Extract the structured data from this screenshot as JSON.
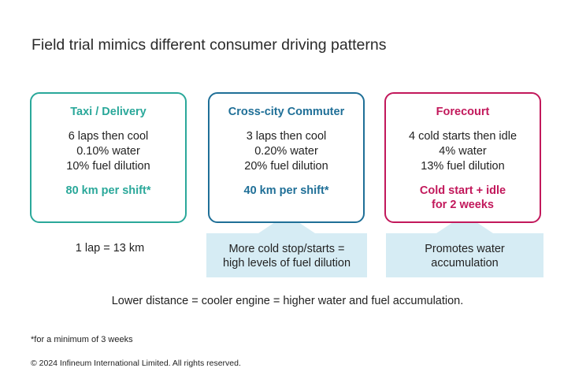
{
  "title": "Field trial mimics different consumer driving patterns",
  "colors": {
    "taxi": "#2aa89a",
    "commuter": "#1f6f97",
    "forecourt": "#c2185b",
    "callout_bg": "#d6ecf4"
  },
  "cards": [
    {
      "heading": "Taxi / Delivery",
      "lines": [
        "6 laps then cool",
        "0.10% water",
        "10% fuel dilution"
      ],
      "highlight": [
        "80 km per shift*"
      ]
    },
    {
      "heading": "Cross-city Commuter",
      "lines": [
        "3 laps then cool",
        "0.20% water",
        "20% fuel dilution"
      ],
      "highlight": [
        "40 km per shift*"
      ]
    },
    {
      "heading": "Forecourt",
      "lines": [
        "4 cold starts then idle",
        "4% water",
        "13% fuel dilution"
      ],
      "highlight": [
        "Cold start + idle",
        "for 2 weeks"
      ]
    }
  ],
  "lap_note": "1 lap = 13 km",
  "callouts": [
    [
      "More cold stop/starts =",
      "high levels of fuel dilution"
    ],
    [
      "Promotes water",
      "accumulation"
    ]
  ],
  "summary": "Lower distance = cooler engine = higher water and fuel accumulation.",
  "footnote": "*for a minimum of 3 weeks",
  "copyright": "© 2024 Infineum International Limited. All rights reserved."
}
